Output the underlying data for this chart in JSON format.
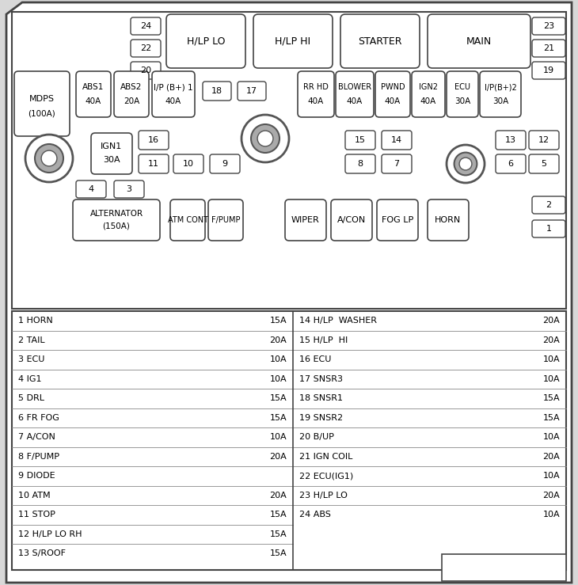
{
  "fuse_entries_left": [
    [
      "1 HORN",
      "15A"
    ],
    [
      "2 TAIL",
      "20A"
    ],
    [
      "3 ECU",
      "10A"
    ],
    [
      "4 IG1",
      "10A"
    ],
    [
      "5 DRL",
      "15A"
    ],
    [
      "6 FR FOG",
      "15A"
    ],
    [
      "7 A/CON",
      "10A"
    ],
    [
      "8 F/PUMP",
      "20A"
    ],
    [
      "9 DIODE",
      ""
    ],
    [
      "10 ATM",
      "20A"
    ],
    [
      "11 STOP",
      "15A"
    ],
    [
      "12 H/LP LO RH",
      "15A"
    ],
    [
      "13 S/ROOF",
      "15A"
    ]
  ],
  "fuse_entries_right": [
    [
      "14 H/LP  WASHER",
      "20A"
    ],
    [
      "15 H/LP  HI",
      "20A"
    ],
    [
      "16 ECU",
      "10A"
    ],
    [
      "17 SNSR3",
      "10A"
    ],
    [
      "18 SNSR1",
      "15A"
    ],
    [
      "19 SNSR2",
      "15A"
    ],
    [
      "20 B/UP",
      "10A"
    ],
    [
      "21 IGN COIL",
      "20A"
    ],
    [
      "22 ECU(IG1)",
      "10A"
    ],
    [
      "23 H/LP LO",
      "20A"
    ],
    [
      "24 ABS",
      "10A"
    ]
  ]
}
